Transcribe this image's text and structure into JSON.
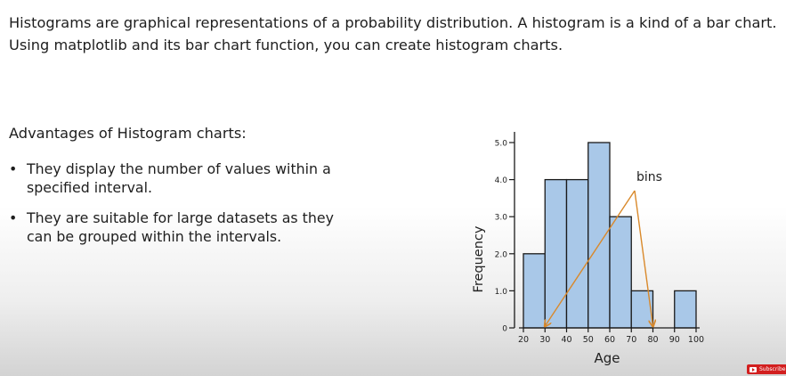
{
  "intro": {
    "text": "Histograms are graphical representations of a probability distribution. A histogram is a kind of a bar chart. Using matplotlib and its bar chart function, you can create histogram charts."
  },
  "advantages": {
    "heading": "Advantages of Histogram charts:",
    "items": [
      "They display the number of values within a specified interval.",
      "They are suitable for large datasets as they can be grouped within the intervals."
    ]
  },
  "chart_data": {
    "type": "bar",
    "categories": [
      "20-30",
      "30-40",
      "40-50",
      "50-60",
      "60-70",
      "70-80",
      "80-90",
      "90-100"
    ],
    "bin_edges": [
      20,
      30,
      40,
      50,
      60,
      70,
      80,
      90,
      100
    ],
    "values": [
      2,
      4,
      4,
      5,
      3,
      1,
      0,
      1
    ],
    "xlabel": "Age",
    "ylabel": "Frequency",
    "ylim": [
      0,
      5
    ],
    "y_ticks": [
      "0",
      "1.0",
      "2.0",
      "3.0",
      "4.0",
      "5.0"
    ],
    "x_ticks": [
      "20",
      "30",
      "40",
      "50",
      "60",
      "70",
      "80",
      "90",
      "100"
    ],
    "annotation": "bins",
    "annotation_arrow_targets": [
      30,
      80
    ],
    "bar_color": "#a9c8e8",
    "arrow_color": "#d9892b",
    "grid": false
  },
  "badge": {
    "label": "Subscribe"
  }
}
